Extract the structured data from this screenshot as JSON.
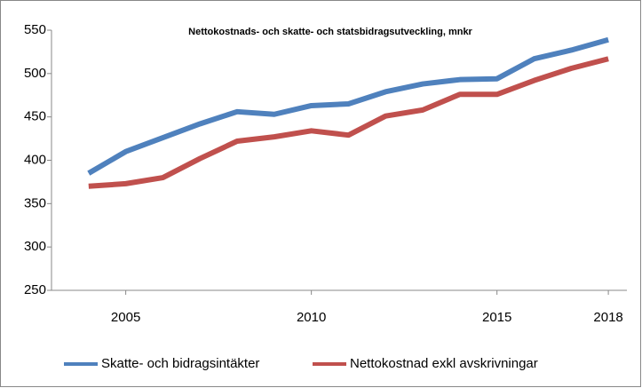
{
  "chart_data": {
    "type": "line",
    "title": "Nettokostnads- och skatte- och statsbidragsutveckling, mnkr",
    "x": [
      2004,
      2005,
      2006,
      2007,
      2008,
      2009,
      2010,
      2011,
      2012,
      2013,
      2014,
      2015,
      2016,
      2017,
      2018
    ],
    "series": [
      {
        "name": "Skatte- och bidragsintäkter",
        "color": "#4f81bd",
        "values": [
          385,
          410,
          426,
          442,
          456,
          453,
          463,
          465,
          479,
          488,
          493,
          494,
          517,
          527,
          539
        ]
      },
      {
        "name": "Nettokostnad exkl avskrivningar",
        "color": "#c0504d",
        "values": [
          370,
          373,
          380,
          402,
          422,
          427,
          434,
          429,
          451,
          458,
          476,
          476,
          492,
          506,
          517
        ]
      }
    ],
    "xlim": [
      2003,
      2018.5
    ],
    "xticks": [
      2005,
      2010,
      2015,
      2018
    ],
    "ylim": [
      250,
      550
    ],
    "yticks": [
      250,
      300,
      350,
      400,
      450,
      500,
      550
    ],
    "grid": false,
    "legend": "bottom"
  }
}
